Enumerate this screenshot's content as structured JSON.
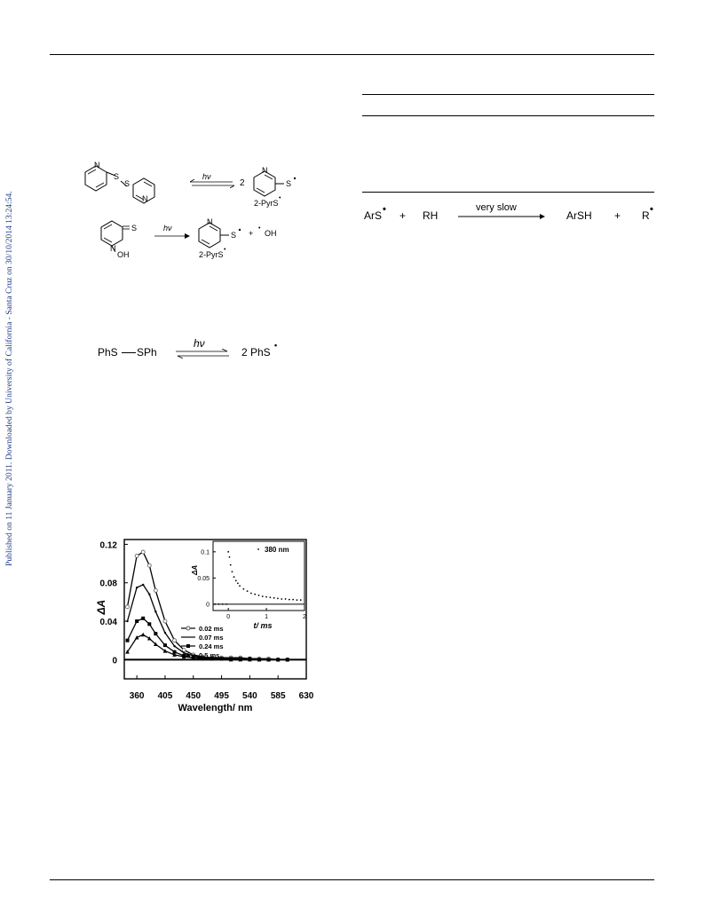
{
  "sidebar": {
    "text": "Published on 11 January 2011. Downloaded by University of California - Santa Cruz on 30/10/2014 13:24:54."
  },
  "scheme1": {
    "pyrs_label_1": "2-PyrS",
    "pyrs_label_2": "2-PyrS",
    "arrow_label": "hν",
    "arrow_label_2": "hν",
    "coef": "2",
    "n_label": "N",
    "s_label": "S",
    "thione_s": "S",
    "oh_label": "OH",
    "plus": "+",
    "oh_radical": "OH"
  },
  "scheme2": {
    "reactant": "PhS",
    "reactant2": "SPh",
    "arrow_label": "hν",
    "product": "2 PhS"
  },
  "reaction": {
    "a": "ArS",
    "plus1": "+",
    "b": "RH",
    "arrow_label": "very slow",
    "c": "ArSH",
    "plus2": "+",
    "d": "R"
  },
  "chart_data": [
    {
      "type": "line",
      "xlabel": "Wavelength/ nm",
      "ylabel": "ΔA",
      "xlim": [
        340,
        630
      ],
      "ylim": [
        -0.02,
        0.125
      ],
      "xticks": [
        "360",
        "405",
        "450",
        "495",
        "540",
        "585",
        "630"
      ],
      "yticks": [
        "0.12",
        "0.08",
        "0.04",
        "0"
      ],
      "legend_position": "center-right",
      "x": [
        345,
        360,
        370,
        380,
        390,
        405,
        420,
        435,
        450,
        465,
        480,
        495,
        510,
        525,
        540,
        555,
        570,
        585,
        600
      ],
      "series": [
        {
          "name": "0.02 ms",
          "values": [
            0.055,
            0.108,
            0.112,
            0.098,
            0.072,
            0.04,
            0.02,
            0.01,
            0.005,
            0.003,
            0.002,
            0.002,
            0.002,
            0.002,
            0.001,
            0.001,
            0.001,
            0.0,
            0.0
          ]
        },
        {
          "name": "0.07 ms",
          "values": [
            0.04,
            0.075,
            0.078,
            0.068,
            0.05,
            0.028,
            0.014,
            0.007,
            0.004,
            0.002,
            0.002,
            0.002,
            0.001,
            0.001,
            0.001,
            0.001,
            0.0,
            0.0,
            0.0
          ]
        },
        {
          "name": "0.24 ms",
          "values": [
            0.02,
            0.04,
            0.043,
            0.037,
            0.027,
            0.015,
            0.008,
            0.004,
            0.002,
            0.002,
            0.001,
            0.001,
            0.001,
            0.001,
            0.001,
            0.0,
            0.0,
            0.0,
            0.0
          ]
        },
        {
          "name": "0.5 ms",
          "values": [
            0.008,
            0.023,
            0.026,
            0.022,
            0.016,
            0.009,
            0.005,
            0.003,
            0.002,
            0.001,
            0.001,
            0.001,
            0.0,
            0.0,
            0.0,
            0.0,
            0.0,
            0.0,
            0.0
          ]
        }
      ]
    },
    {
      "type": "scatter",
      "xlabel": "t/ ms",
      "ylabel": "ΔA",
      "xlim": [
        -0.4,
        2.0
      ],
      "ylim": [
        -0.012,
        0.12
      ],
      "xticks": [
        "0",
        "1",
        "2"
      ],
      "yticks": [
        "0.1",
        "0.05",
        "0"
      ],
      "legend_position": "top-right",
      "series": [
        {
          "name": "380 nm",
          "x": [
            -0.35,
            -0.25,
            -0.15,
            -0.05,
            0.0,
            0.03,
            0.06,
            0.1,
            0.15,
            0.2,
            0.25,
            0.3,
            0.4,
            0.5,
            0.6,
            0.7,
            0.8,
            0.9,
            1.0,
            1.1,
            1.2,
            1.3,
            1.4,
            1.5,
            1.6,
            1.7,
            1.8,
            1.9
          ],
          "values": [
            0.0,
            0.0,
            0.0,
            0.0,
            0.1,
            0.09,
            0.075,
            0.062,
            0.052,
            0.045,
            0.04,
            0.035,
            0.029,
            0.025,
            0.021,
            0.019,
            0.017,
            0.015,
            0.014,
            0.013,
            0.012,
            0.011,
            0.01,
            0.01,
            0.009,
            0.009,
            0.008,
            0.008
          ]
        }
      ]
    }
  ]
}
